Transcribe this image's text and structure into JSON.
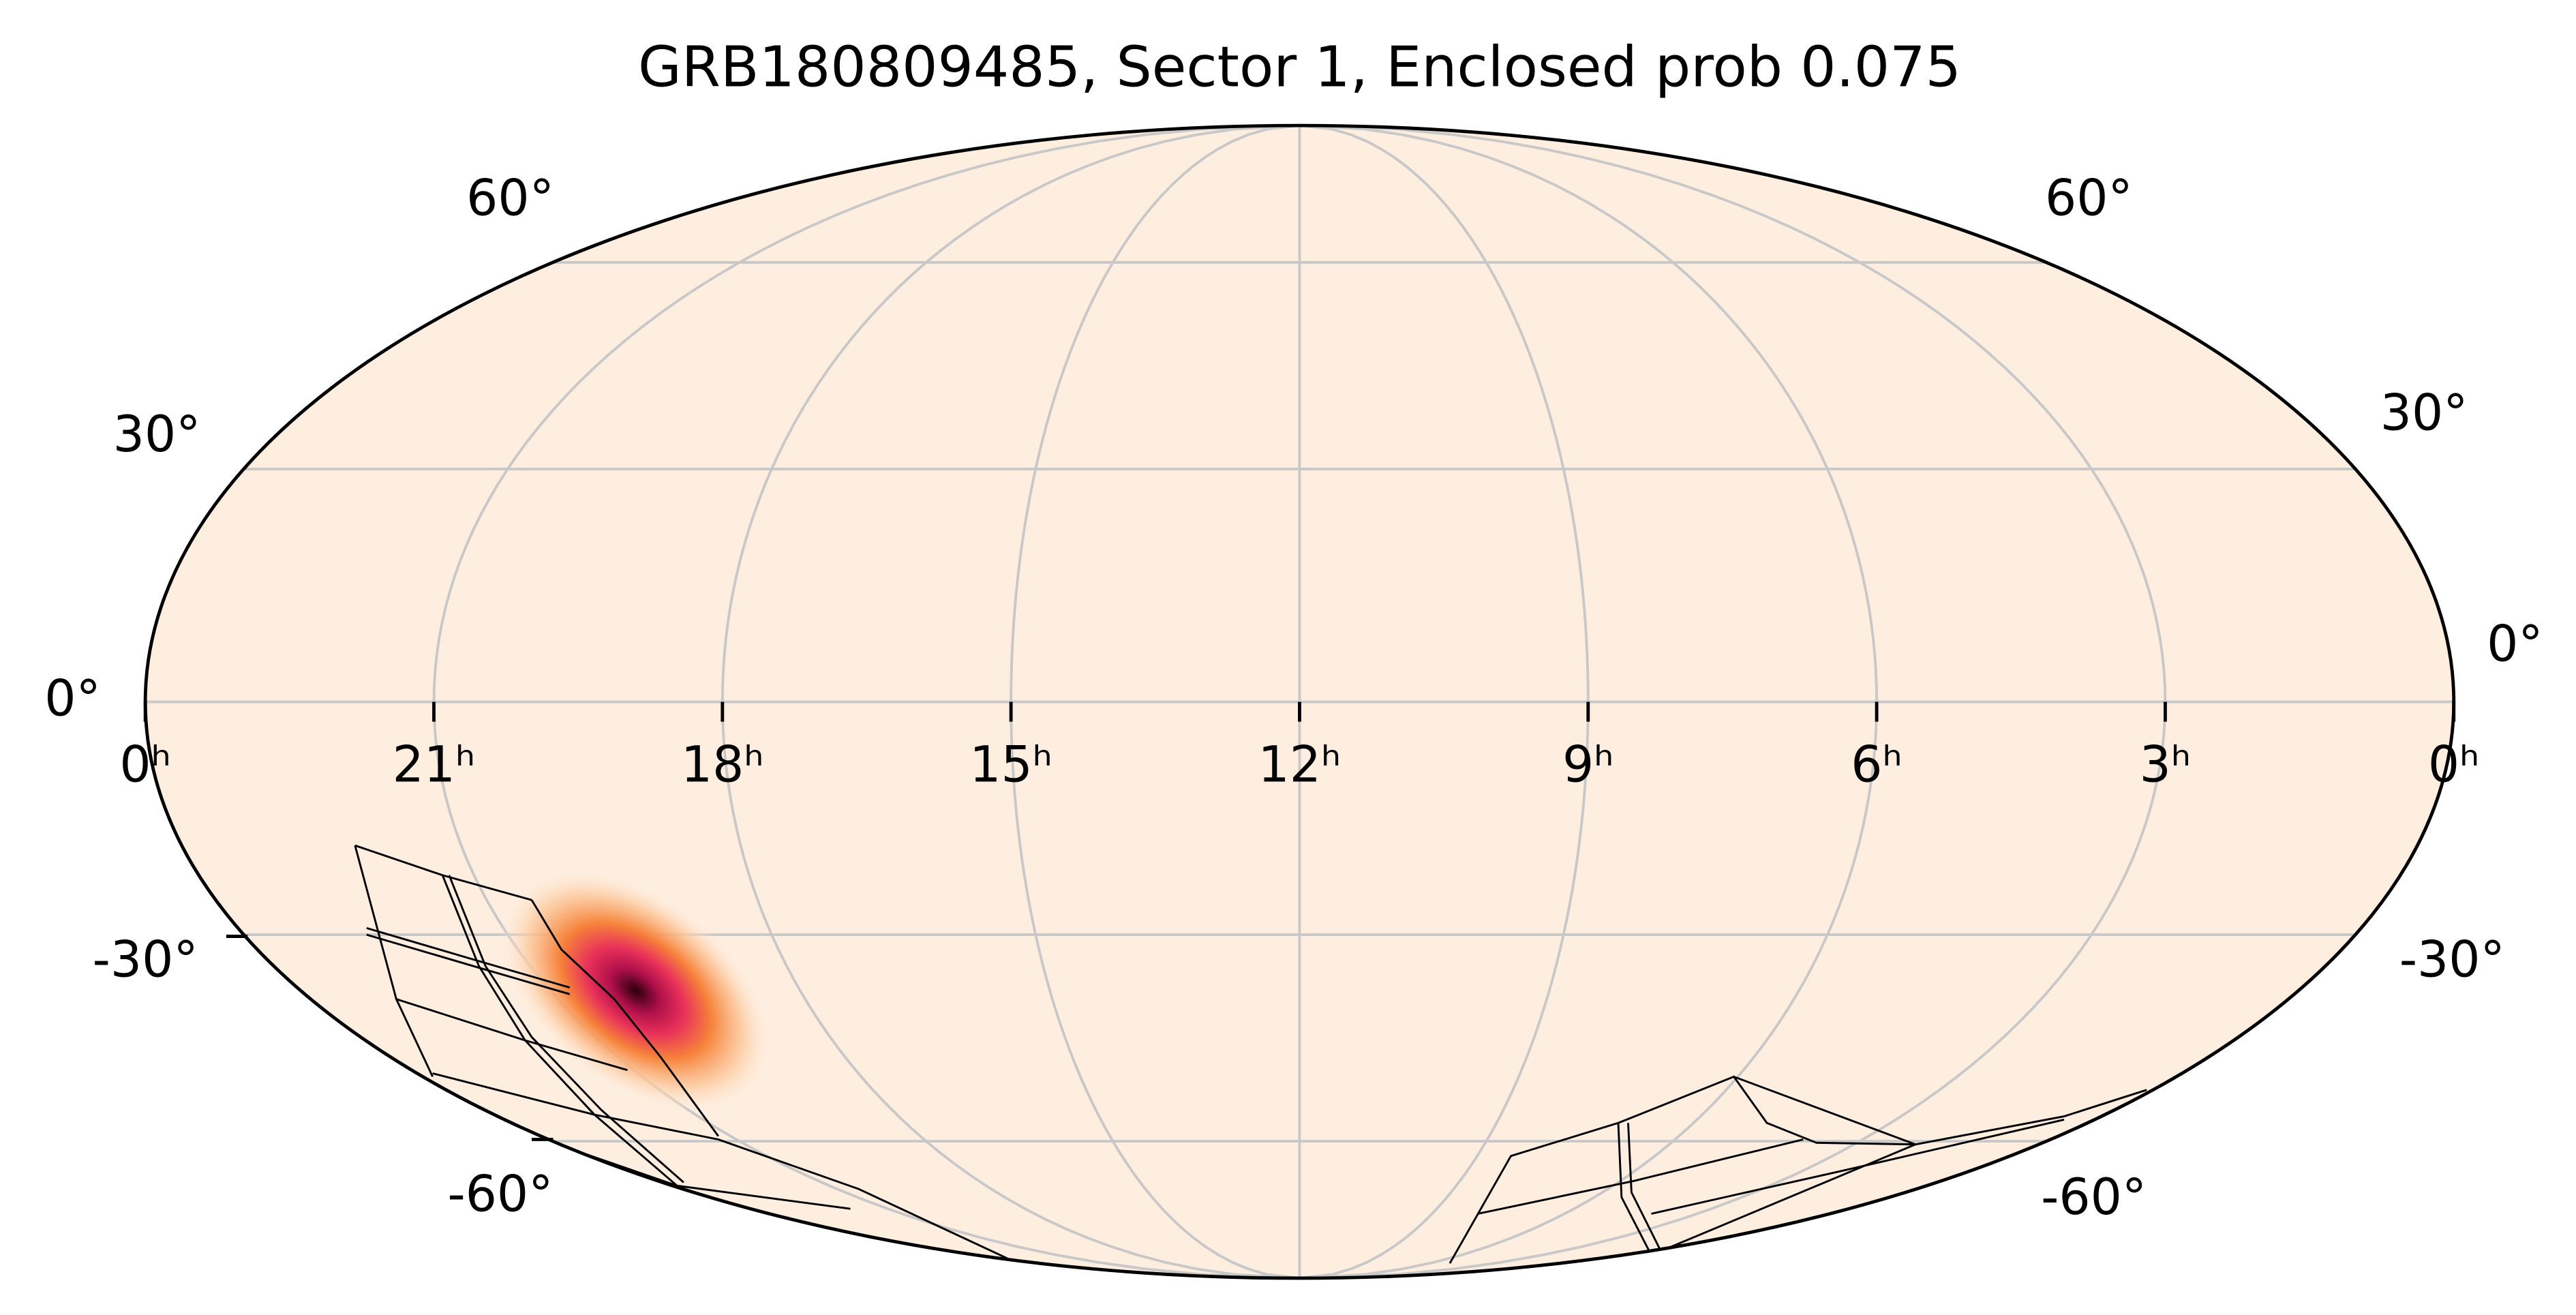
{
  "title": "GRB180809485, Sector 1, Enclosed prob 0.075",
  "ra_labels": [
    "0ʰ",
    "21ʰ",
    "18ʰ",
    "15ʰ",
    "12ʰ",
    "9ʰ",
    "6ʰ",
    "3ʰ",
    "0ʰ"
  ],
  "dec_labels_left": [
    "60°",
    "30°",
    "0°",
    "-30°",
    "-60°"
  ],
  "dec_labels_right": [
    "60°",
    "30°",
    "0°",
    "-30°",
    "-60°"
  ]
}
